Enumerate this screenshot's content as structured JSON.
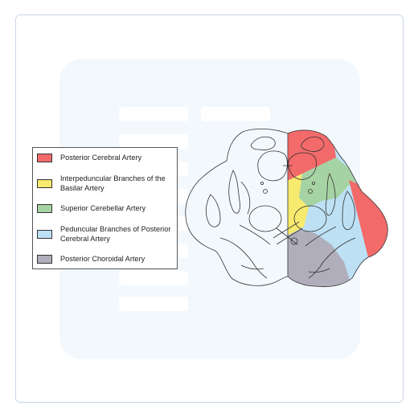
{
  "legend": {
    "items": [
      {
        "label": "Posterior Cerebral Artery",
        "color": "#f36a6a"
      },
      {
        "label": "Interpeduncular Branches of the Basilar Artery",
        "color": "#f7ea6e"
      },
      {
        "label": "Superior Cerebellar Artery",
        "color": "#a6d3a3"
      },
      {
        "label": "Peduncular Branches of Posterior Cerebral Artery",
        "color": "#bde0f4"
      },
      {
        "label": "Posterior Choroidal Artery",
        "color": "#b1aebb"
      }
    ]
  },
  "colors": {
    "outline": "#333333",
    "frame_border": "#c9d6e8",
    "watermark": "#f3f8fd"
  }
}
